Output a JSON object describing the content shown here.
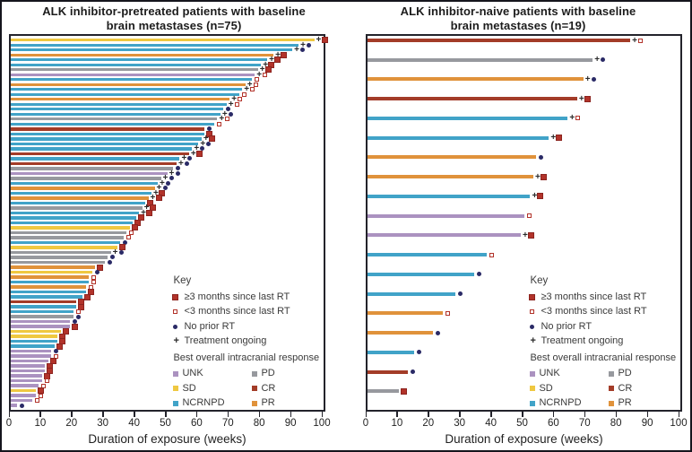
{
  "panels": [
    {
      "title_line1": "ALK inhibitor-pretreated patients with baseline",
      "title_line2": "brain metastases (n=75)"
    },
    {
      "title_line1": "ALK inhibitor-naive patients with baseline",
      "title_line2": "brain metastases (n=19)"
    }
  ],
  "axis": {
    "label": "Duration of exposure (weeks)",
    "ticks": [
      0,
      10,
      20,
      30,
      40,
      50,
      60,
      70,
      80,
      90,
      100
    ],
    "range": [
      0,
      100
    ]
  },
  "legend": {
    "key_title": "Key",
    "key_items": [
      {
        "symbol": "sq-filled",
        "label": "≥3 months since last RT"
      },
      {
        "symbol": "sq-open",
        "label": "<3 months since last RT"
      },
      {
        "symbol": "circle",
        "label": "No prior RT"
      },
      {
        "symbol": "plus",
        "label": "Treatment ongoing"
      }
    ],
    "response_title": "Best overall intracranial response",
    "responses": [
      {
        "code": "UNK"
      },
      {
        "code": "PD"
      },
      {
        "code": "SD"
      },
      {
        "code": "CR"
      },
      {
        "code": "NCRNPD"
      },
      {
        "code": "PR"
      }
    ]
  },
  "colors": {
    "UNK": "#ab92c0",
    "SD": "#efc841",
    "NCRNPD": "#41a3c8",
    "PD": "#97999e",
    "CR": "#a33c28",
    "PR": "#e0923b",
    "rt_marker": "#b2332a",
    "no_prior_rt": "#2a2a66",
    "plus": "#2a2a2a",
    "plot_border": "#23232b"
  },
  "chart_data": [
    {
      "type": "bar",
      "subtype": "swimmer",
      "title": "ALK inhibitor-pretreated patients with baseline brain metastases (n=75)",
      "xlabel": "Duration of exposure (weeks)",
      "xlim": [
        0,
        100
      ],
      "n": 75,
      "bars": [
        {
          "weeks": 97,
          "response": "SD",
          "rt": "ge3",
          "ongoing": true
        },
        {
          "weeks": 92,
          "response": "NCRNPD",
          "rt": "none",
          "ongoing": true
        },
        {
          "weeks": 90,
          "response": "NCRNPD",
          "rt": "none",
          "ongoing": true
        },
        {
          "weeks": 84,
          "response": "PR",
          "rt": "ge3",
          "ongoing": true
        },
        {
          "weeks": 82,
          "response": "NCRNPD",
          "rt": "ge3",
          "ongoing": true
        },
        {
          "weeks": 80,
          "response": "NCRNPD",
          "rt": "ge3",
          "ongoing": true
        },
        {
          "weeks": 79,
          "response": "PD",
          "rt": "ge3",
          "ongoing": true
        },
        {
          "weeks": 78,
          "response": "UNK",
          "rt": "lt3",
          "ongoing": true
        },
        {
          "weeks": 77,
          "response": "NCRNPD",
          "rt": "lt3",
          "ongoing": false
        },
        {
          "weeks": 75,
          "response": "PR",
          "rt": "lt3",
          "ongoing": true
        },
        {
          "weeks": 74,
          "response": "NCRNPD",
          "rt": "lt3",
          "ongoing": true
        },
        {
          "weeks": 73,
          "response": "NCRNPD",
          "rt": "lt3",
          "ongoing": false
        },
        {
          "weeks": 70,
          "response": "PR",
          "rt": "lt3",
          "ongoing": true
        },
        {
          "weeks": 69,
          "response": "NCRNPD",
          "rt": "lt3",
          "ongoing": true
        },
        {
          "weeks": 68,
          "response": "NCRNPD",
          "rt": "none",
          "ongoing": false
        },
        {
          "weeks": 67,
          "response": "NCRNPD",
          "rt": "none",
          "ongoing": true
        },
        {
          "weeks": 66,
          "response": "PD",
          "rt": "lt3",
          "ongoing": true
        },
        {
          "weeks": 65,
          "response": "NCRNPD",
          "rt": "lt3",
          "ongoing": false
        },
        {
          "weeks": 62,
          "response": "CR",
          "rt": "none",
          "ongoing": false
        },
        {
          "weeks": 62,
          "response": "NCRNPD",
          "rt": "ge3",
          "ongoing": false
        },
        {
          "weeks": 61,
          "response": "NCRNPD",
          "rt": "ge3",
          "ongoing": true
        },
        {
          "weeks": 60,
          "response": "NCRNPD",
          "rt": "none",
          "ongoing": true
        },
        {
          "weeks": 58,
          "response": "NCRNPD",
          "rt": "none",
          "ongoing": true
        },
        {
          "weeks": 57,
          "response": "CR",
          "rt": "ge3",
          "ongoing": true
        },
        {
          "weeks": 54,
          "response": "NCRNPD",
          "rt": "none",
          "ongoing": true
        },
        {
          "weeks": 53,
          "response": "CR",
          "rt": "none",
          "ongoing": true
        },
        {
          "weeks": 52,
          "response": "PD",
          "rt": "none",
          "ongoing": false
        },
        {
          "weeks": 50,
          "response": "UNK",
          "rt": "none",
          "ongoing": true
        },
        {
          "weeks": 48,
          "response": "PD",
          "rt": "none",
          "ongoing": true
        },
        {
          "weeks": 47,
          "response": "NCRNPD",
          "rt": "none",
          "ongoing": true
        },
        {
          "weeks": 46,
          "response": "PR",
          "rt": "none",
          "ongoing": true
        },
        {
          "weeks": 45,
          "response": "NCRNPD",
          "rt": "ge3",
          "ongoing": true
        },
        {
          "weeks": 44,
          "response": "PR",
          "rt": "ge3",
          "ongoing": true
        },
        {
          "weeks": 43,
          "response": "NCRNPD",
          "rt": "ge3",
          "ongoing": false
        },
        {
          "weeks": 42,
          "response": "PD",
          "rt": "ge3",
          "ongoing": true
        },
        {
          "weeks": 41,
          "response": "NCRNPD",
          "rt": "ge3",
          "ongoing": true
        },
        {
          "weeks": 40,
          "response": "NCRNPD",
          "rt": "ge3",
          "ongoing": false
        },
        {
          "weeks": 39,
          "response": "NCRNPD",
          "rt": "ge3",
          "ongoing": false
        },
        {
          "weeks": 38,
          "response": "SD",
          "rt": "ge3",
          "ongoing": false
        },
        {
          "weeks": 37,
          "response": "PD",
          "rt": "lt3",
          "ongoing": false
        },
        {
          "weeks": 36,
          "response": "PD",
          "rt": "lt3",
          "ongoing": false
        },
        {
          "weeks": 35,
          "response": "NCRNPD",
          "rt": "none",
          "ongoing": false
        },
        {
          "weeks": 34,
          "response": "SD",
          "rt": "ge3",
          "ongoing": false
        },
        {
          "weeks": 32,
          "response": "PD",
          "rt": "none",
          "ongoing": true
        },
        {
          "weeks": 31,
          "response": "PD",
          "rt": "none",
          "ongoing": false
        },
        {
          "weeks": 30,
          "response": "PD",
          "rt": "none",
          "ongoing": false
        },
        {
          "weeks": 27,
          "response": "PR",
          "rt": "ge3",
          "ongoing": false
        },
        {
          "weeks": 26,
          "response": "SD",
          "rt": "none",
          "ongoing": false
        },
        {
          "weeks": 25,
          "response": "PR",
          "rt": "lt3",
          "ongoing": false
        },
        {
          "weeks": 25,
          "response": "NCRNPD",
          "rt": "lt3",
          "ongoing": false
        },
        {
          "weeks": 24,
          "response": "PR",
          "rt": "lt3",
          "ongoing": false
        },
        {
          "weeks": 24,
          "response": "NCRNPD",
          "rt": "ge3",
          "ongoing": false
        },
        {
          "weeks": 23,
          "response": "NCRNPD",
          "rt": "ge3",
          "ongoing": false
        },
        {
          "weeks": 21,
          "response": "CR",
          "rt": "ge3",
          "ongoing": false
        },
        {
          "weeks": 21,
          "response": "NCRNPD",
          "rt": "ge3",
          "ongoing": false
        },
        {
          "weeks": 20,
          "response": "NCRNPD",
          "rt": "lt3",
          "ongoing": false
        },
        {
          "weeks": 20,
          "response": "PD",
          "rt": "none",
          "ongoing": false
        },
        {
          "weeks": 19,
          "response": "UNK",
          "rt": "none",
          "ongoing": false
        },
        {
          "weeks": 19,
          "response": "UNK",
          "rt": "ge3",
          "ongoing": false
        },
        {
          "weeks": 16,
          "response": "SD",
          "rt": "ge3",
          "ongoing": false
        },
        {
          "weeks": 15,
          "response": "SD",
          "rt": "ge3",
          "ongoing": false
        },
        {
          "weeks": 15,
          "response": "NCRNPD",
          "rt": "ge3",
          "ongoing": false
        },
        {
          "weeks": 14,
          "response": "NCRNPD",
          "rt": "ge3",
          "ongoing": false
        },
        {
          "weeks": 13,
          "response": "UNK",
          "rt": "none",
          "ongoing": false
        },
        {
          "weeks": 13,
          "response": "UNK",
          "rt": "lt3",
          "ongoing": false
        },
        {
          "weeks": 12,
          "response": "UNK",
          "rt": "ge3",
          "ongoing": false
        },
        {
          "weeks": 11,
          "response": "UNK",
          "rt": "ge3",
          "ongoing": false
        },
        {
          "weeks": 11,
          "response": "UNK",
          "rt": "ge3",
          "ongoing": false
        },
        {
          "weeks": 10,
          "response": "UNK",
          "rt": "ge3",
          "ongoing": false
        },
        {
          "weeks": 10,
          "response": "UNK",
          "rt": "lt3",
          "ongoing": false
        },
        {
          "weeks": 9,
          "response": "UNK",
          "rt": "lt3",
          "ongoing": false
        },
        {
          "weeks": 8,
          "response": "SD",
          "rt": "ge3",
          "ongoing": false
        },
        {
          "weeks": 8,
          "response": "UNK",
          "rt": "lt3",
          "ongoing": false
        },
        {
          "weeks": 7,
          "response": "UNK",
          "rt": "lt3",
          "ongoing": false
        },
        {
          "weeks": 2,
          "response": "UNK",
          "rt": "none",
          "ongoing": false
        }
      ]
    },
    {
      "type": "bar",
      "subtype": "swimmer",
      "title": "ALK inhibitor-naive patients with baseline brain metastases (n=19)",
      "xlabel": "Duration of exposure (weeks)",
      "xlim": [
        0,
        100
      ],
      "n": 19,
      "bars": [
        {
          "weeks": 84,
          "response": "CR",
          "rt": "lt3",
          "ongoing": true
        },
        {
          "weeks": 72,
          "response": "PD",
          "rt": "none",
          "ongoing": true
        },
        {
          "weeks": 69,
          "response": "PR",
          "rt": "none",
          "ongoing": true
        },
        {
          "weeks": 67,
          "response": "CR",
          "rt": "ge3",
          "ongoing": true
        },
        {
          "weeks": 64,
          "response": "NCRNPD",
          "rt": "lt3",
          "ongoing": true
        },
        {
          "weeks": 58,
          "response": "NCRNPD",
          "rt": "ge3",
          "ongoing": true
        },
        {
          "weeks": 54,
          "response": "PR",
          "rt": "none",
          "ongoing": false
        },
        {
          "weeks": 53,
          "response": "PR",
          "rt": "ge3",
          "ongoing": true
        },
        {
          "weeks": 52,
          "response": "NCRNPD",
          "rt": "ge3",
          "ongoing": true
        },
        {
          "weeks": 50,
          "response": "UNK",
          "rt": "lt3",
          "ongoing": false
        },
        {
          "weeks": 49,
          "response": "UNK",
          "rt": "ge3",
          "ongoing": true
        },
        {
          "weeks": 38,
          "response": "NCRNPD",
          "rt": "lt3",
          "ongoing": false
        },
        {
          "weeks": 34,
          "response": "NCRNPD",
          "rt": "none",
          "ongoing": false
        },
        {
          "weeks": 28,
          "response": "NCRNPD",
          "rt": "none",
          "ongoing": false
        },
        {
          "weeks": 24,
          "response": "PR",
          "rt": "lt3",
          "ongoing": false
        },
        {
          "weeks": 21,
          "response": "PR",
          "rt": "none",
          "ongoing": false
        },
        {
          "weeks": 15,
          "response": "NCRNPD",
          "rt": "none",
          "ongoing": false
        },
        {
          "weeks": 13,
          "response": "CR",
          "rt": "none",
          "ongoing": false
        },
        {
          "weeks": 10,
          "response": "PD",
          "rt": "ge3",
          "ongoing": false
        }
      ]
    }
  ]
}
